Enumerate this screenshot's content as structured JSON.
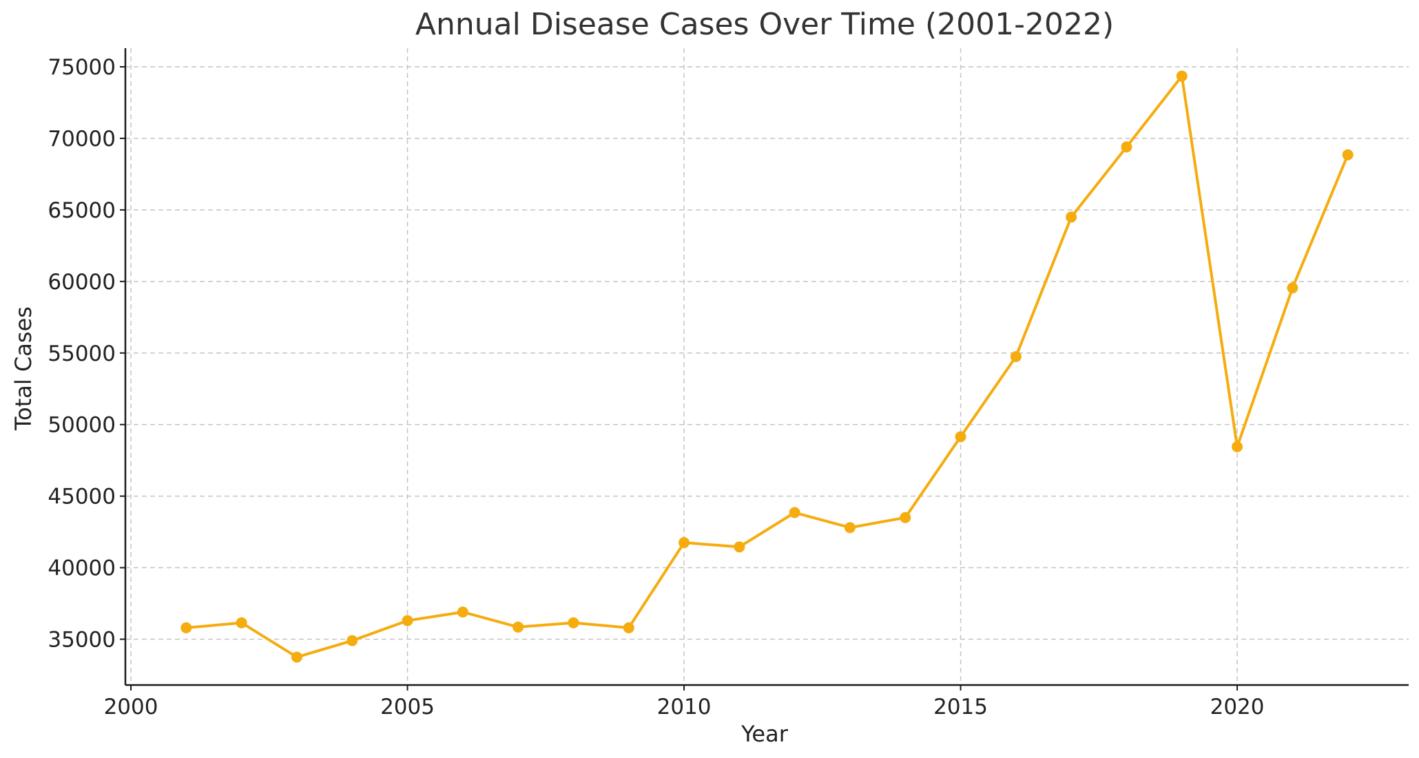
{
  "chart_data": {
    "type": "line",
    "title": "Annual Disease Cases Over Time (2001-2022)",
    "xlabel": "Year",
    "ylabel": "Total Cases",
    "xlim": [
      1999.9,
      2023.1
    ],
    "ylim": [
      31800,
      76300
    ],
    "xticks": [
      2000,
      2005,
      2010,
      2015,
      2020
    ],
    "yticks": [
      35000,
      40000,
      45000,
      50000,
      55000,
      60000,
      65000,
      70000,
      75000
    ],
    "grid": true,
    "colors": {
      "series": "#f5ac0f"
    },
    "x": [
      2001,
      2002,
      2003,
      2004,
      2005,
      2006,
      2007,
      2008,
      2009,
      2010,
      2011,
      2012,
      2013,
      2014,
      2015,
      2016,
      2017,
      2018,
      2019,
      2020,
      2021,
      2022
    ],
    "series": [
      {
        "values": [
          35800,
          36150,
          33750,
          34900,
          36300,
          36900,
          35850,
          36150,
          35800,
          41750,
          41450,
          43850,
          42800,
          43500,
          49150,
          54750,
          64500,
          69400,
          74350,
          48450,
          59550,
          68850
        ]
      }
    ]
  }
}
